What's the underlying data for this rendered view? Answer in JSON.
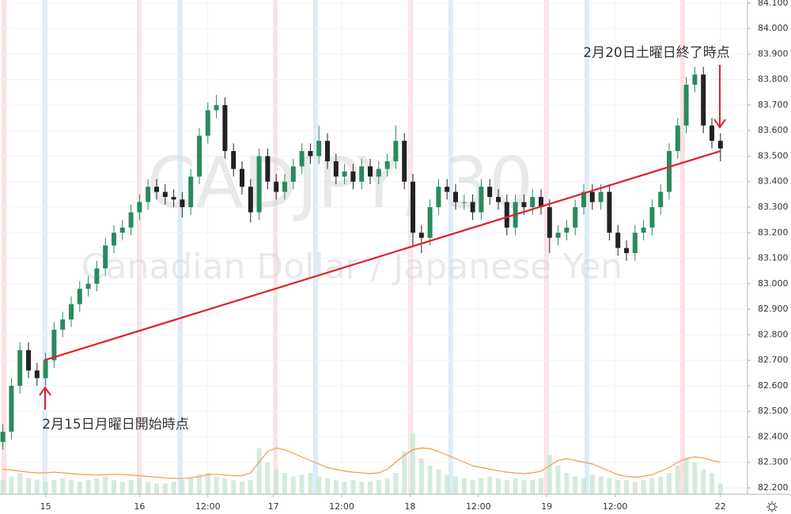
{
  "chart_data": {
    "type": "candlestick",
    "watermark": [
      "CADJPY, 30",
      "Canadian Dollar / Japanese Yen"
    ],
    "annotations": [
      {
        "text": "2月20日土曜日終了時点",
        "color": "#e0202a"
      },
      {
        "text": "2月15日月曜日開始時点",
        "color": "#e0202a"
      }
    ],
    "up_color": "#2a8a5e",
    "down_color": "#222222",
    "x": [
      1,
      4,
      7,
      10,
      13,
      16,
      19,
      22,
      25,
      28,
      31,
      34,
      37,
      40,
      43,
      46,
      49,
      52,
      55,
      58,
      61,
      64,
      67,
      70,
      73,
      76,
      79,
      82,
      85,
      88,
      91,
      94,
      97,
      100,
      103,
      106,
      109,
      112,
      115,
      118,
      121,
      124,
      127,
      130,
      133,
      136,
      139,
      142,
      145,
      148,
      151,
      154,
      157,
      160,
      163,
      166,
      169,
      172,
      175,
      178,
      181,
      184,
      187,
      190,
      193,
      196,
      199,
      202,
      205,
      208,
      211,
      214,
      217,
      220,
      223,
      226,
      229,
      232,
      235,
      238,
      241,
      244,
      247,
      250,
      253
    ],
    "open": [
      82.38,
      82.42,
      82.6,
      82.74,
      82.66,
      82.63,
      82.7,
      82.82,
      82.86,
      82.92,
      82.98,
      83.0,
      83.06,
      83.15,
      83.2,
      83.22,
      83.28,
      83.32,
      83.38,
      83.36,
      83.34,
      83.33,
      83.3,
      83.42,
      83.58,
      83.68,
      83.7,
      83.52,
      83.45,
      83.38,
      83.28,
      83.5,
      83.4,
      83.36,
      83.4,
      83.46,
      83.52,
      83.5,
      83.56,
      83.48,
      83.42,
      83.44,
      83.4,
      83.46,
      83.42,
      83.45,
      83.48,
      83.56,
      83.4,
      83.2,
      83.18,
      83.3,
      83.38,
      83.36,
      83.32,
      83.32,
      83.28,
      83.38,
      83.34,
      83.32,
      83.22,
      83.32,
      83.3,
      83.34,
      83.3,
      83.18,
      83.2,
      83.22,
      83.3,
      83.36,
      83.32,
      83.36,
      83.2,
      83.14,
      83.12,
      83.2,
      83.22,
      83.3,
      83.36,
      83.52,
      83.62,
      83.78,
      83.82,
      83.62,
      83.56
    ],
    "high": [
      82.45,
      82.63,
      82.77,
      82.77,
      82.69,
      82.73,
      82.85,
      82.89,
      82.95,
      83.01,
      83.03,
      83.09,
      83.18,
      83.23,
      83.25,
      83.31,
      83.35,
      83.41,
      83.41,
      83.39,
      83.37,
      83.36,
      83.45,
      83.61,
      83.71,
      83.74,
      83.73,
      83.55,
      83.48,
      83.41,
      83.53,
      83.53,
      83.43,
      83.43,
      83.49,
      83.55,
      83.55,
      83.62,
      83.59,
      83.51,
      83.47,
      83.47,
      83.49,
      83.49,
      83.48,
      83.51,
      83.62,
      83.59,
      83.43,
      83.23,
      83.33,
      83.41,
      83.41,
      83.39,
      83.35,
      83.35,
      83.41,
      83.41,
      83.37,
      83.35,
      83.35,
      83.35,
      83.37,
      83.37,
      83.33,
      83.23,
      83.25,
      83.33,
      83.39,
      83.39,
      83.39,
      83.39,
      83.23,
      83.17,
      83.23,
      83.25,
      83.33,
      83.39,
      83.55,
      83.65,
      83.81,
      83.85,
      83.85,
      83.65,
      83.59
    ],
    "low": [
      82.35,
      82.39,
      82.57,
      82.63,
      82.6,
      82.6,
      82.67,
      82.79,
      82.83,
      82.89,
      82.95,
      82.97,
      83.03,
      83.12,
      83.17,
      83.19,
      83.25,
      83.29,
      83.33,
      83.31,
      83.3,
      83.26,
      83.27,
      83.39,
      83.55,
      83.65,
      83.49,
      83.42,
      83.35,
      83.24,
      83.25,
      83.37,
      83.33,
      83.33,
      83.37,
      83.43,
      83.47,
      83.47,
      83.45,
      83.39,
      83.39,
      83.37,
      83.37,
      83.39,
      83.39,
      83.42,
      83.45,
      83.37,
      83.15,
      83.12,
      83.15,
      83.27,
      83.33,
      83.29,
      83.29,
      83.25,
      83.25,
      83.31,
      83.29,
      83.19,
      83.19,
      83.27,
      83.27,
      83.27,
      83.12,
      83.15,
      83.17,
      83.19,
      83.27,
      83.29,
      83.29,
      83.17,
      83.11,
      83.09,
      83.09,
      83.17,
      83.19,
      83.27,
      83.33,
      83.49,
      83.59,
      83.75,
      83.59,
      83.53,
      83.48
    ],
    "close": [
      82.42,
      82.6,
      82.74,
      82.66,
      82.63,
      82.7,
      82.82,
      82.86,
      82.92,
      82.98,
      83.0,
      83.06,
      83.15,
      83.2,
      83.22,
      83.28,
      83.32,
      83.38,
      83.36,
      83.34,
      83.33,
      83.3,
      83.42,
      83.58,
      83.68,
      83.7,
      83.52,
      83.45,
      83.38,
      83.28,
      83.5,
      83.4,
      83.36,
      83.4,
      83.46,
      83.52,
      83.5,
      83.56,
      83.48,
      83.42,
      83.44,
      83.4,
      83.46,
      83.42,
      83.45,
      83.48,
      83.56,
      83.4,
      83.2,
      83.18,
      83.3,
      83.38,
      83.36,
      83.32,
      83.32,
      83.28,
      83.38,
      83.34,
      83.32,
      83.22,
      83.32,
      83.3,
      83.34,
      83.3,
      83.18,
      83.2,
      83.22,
      83.3,
      83.36,
      83.32,
      83.36,
      83.2,
      83.14,
      83.12,
      83.2,
      83.22,
      83.3,
      83.36,
      83.52,
      83.62,
      83.78,
      83.82,
      83.62,
      83.56,
      83.53
    ],
    "volume": [
      40,
      50,
      60,
      45,
      40,
      35,
      40,
      45,
      40,
      35,
      40,
      45,
      50,
      40,
      35,
      40,
      45,
      35,
      30,
      30,
      35,
      40,
      45,
      55,
      60,
      50,
      45,
      40,
      35,
      40,
      130,
      90,
      70,
      60,
      50,
      55,
      60,
      50,
      45,
      40,
      35,
      40,
      35,
      35,
      40,
      45,
      60,
      120,
      170,
      100,
      80,
      70,
      55,
      50,
      45,
      40,
      45,
      50,
      45,
      40,
      45,
      40,
      40,
      45,
      110,
      80,
      60,
      50,
      45,
      55,
      50,
      45,
      40,
      40,
      35,
      40,
      45,
      50,
      60,
      80,
      100,
      90,
      70,
      60,
      30
    ],
    "volume_ma": [
      70,
      68,
      65,
      62,
      60,
      60,
      62,
      60,
      58,
      56,
      55,
      54,
      55,
      56,
      55,
      54,
      52,
      50,
      48,
      46,
      45,
      44,
      46,
      50,
      55,
      56,
      54,
      52,
      52,
      60,
      90,
      120,
      130,
      125,
      115,
      105,
      95,
      85,
      75,
      70,
      65,
      62,
      60,
      58,
      60,
      70,
      90,
      110,
      125,
      130,
      128,
      120,
      110,
      100,
      90,
      80,
      75,
      70,
      66,
      62,
      60,
      58,
      60,
      65,
      80,
      95,
      100,
      95,
      90,
      85,
      75,
      65,
      55,
      50,
      48,
      50,
      55,
      65,
      75,
      90,
      100,
      105,
      102,
      95,
      90
    ],
    "volume_color": "#c9e6d3",
    "volume_ma_color": "#f39a4c",
    "trendline": {
      "x": [
        15.5,
        253
      ],
      "y": [
        82.7,
        83.52
      ],
      "color": "#e0202a"
    },
    "sessions": [
      {
        "color": "#fbd3d6",
        "x": [
          1.4,
          48.9,
          96.7,
          144.2,
          191.9,
          239.7
        ]
      },
      {
        "color": "#cfe3f7",
        "x": [
          15.8,
          63.3,
          110.8,
          158.3,
          206.1
        ]
      }
    ],
    "xlim": [
      0,
      262.5
    ],
    "xticks": [
      {
        "value": 16,
        "label": "15"
      },
      {
        "value": 49,
        "label": "16"
      },
      {
        "value": 73,
        "label": "12:00"
      },
      {
        "value": 96,
        "label": "17"
      },
      {
        "value": 120,
        "label": "12:00"
      },
      {
        "value": 144,
        "label": "18"
      },
      {
        "value": 168,
        "label": "12:00"
      },
      {
        "value": 192,
        "label": "19"
      },
      {
        "value": 216,
        "label": "12:00"
      },
      {
        "value": 253,
        "label": "22"
      }
    ],
    "ylim": [
      82.175,
      84.112
    ],
    "yticks": [
      {
        "value": 82.2,
        "label": "82.200"
      },
      {
        "value": 82.3,
        "label": "82.300"
      },
      {
        "value": 82.4,
        "label": "82.400"
      },
      {
        "value": 82.5,
        "label": "82.500"
      },
      {
        "value": 82.6,
        "label": "82.600"
      },
      {
        "value": 82.7,
        "label": "82.700"
      },
      {
        "value": 82.8,
        "label": "82.800"
      },
      {
        "value": 82.9,
        "label": "82.900"
      },
      {
        "value": 83.0,
        "label": "83.000"
      },
      {
        "value": 83.1,
        "label": "83.100"
      },
      {
        "value": 83.2,
        "label": "83.200"
      },
      {
        "value": 83.3,
        "label": "83.300"
      },
      {
        "value": 83.4,
        "label": "83.400"
      },
      {
        "value": 83.5,
        "label": "83.500"
      },
      {
        "value": 83.6,
        "label": "83.600"
      },
      {
        "value": 83.7,
        "label": "83.700"
      },
      {
        "value": 83.8,
        "label": "83.800"
      },
      {
        "value": 83.9,
        "label": "83.900"
      },
      {
        "value": 84.0,
        "label": "84.000"
      },
      {
        "value": 84.1,
        "label": "84.100"
      }
    ],
    "grid": true
  }
}
